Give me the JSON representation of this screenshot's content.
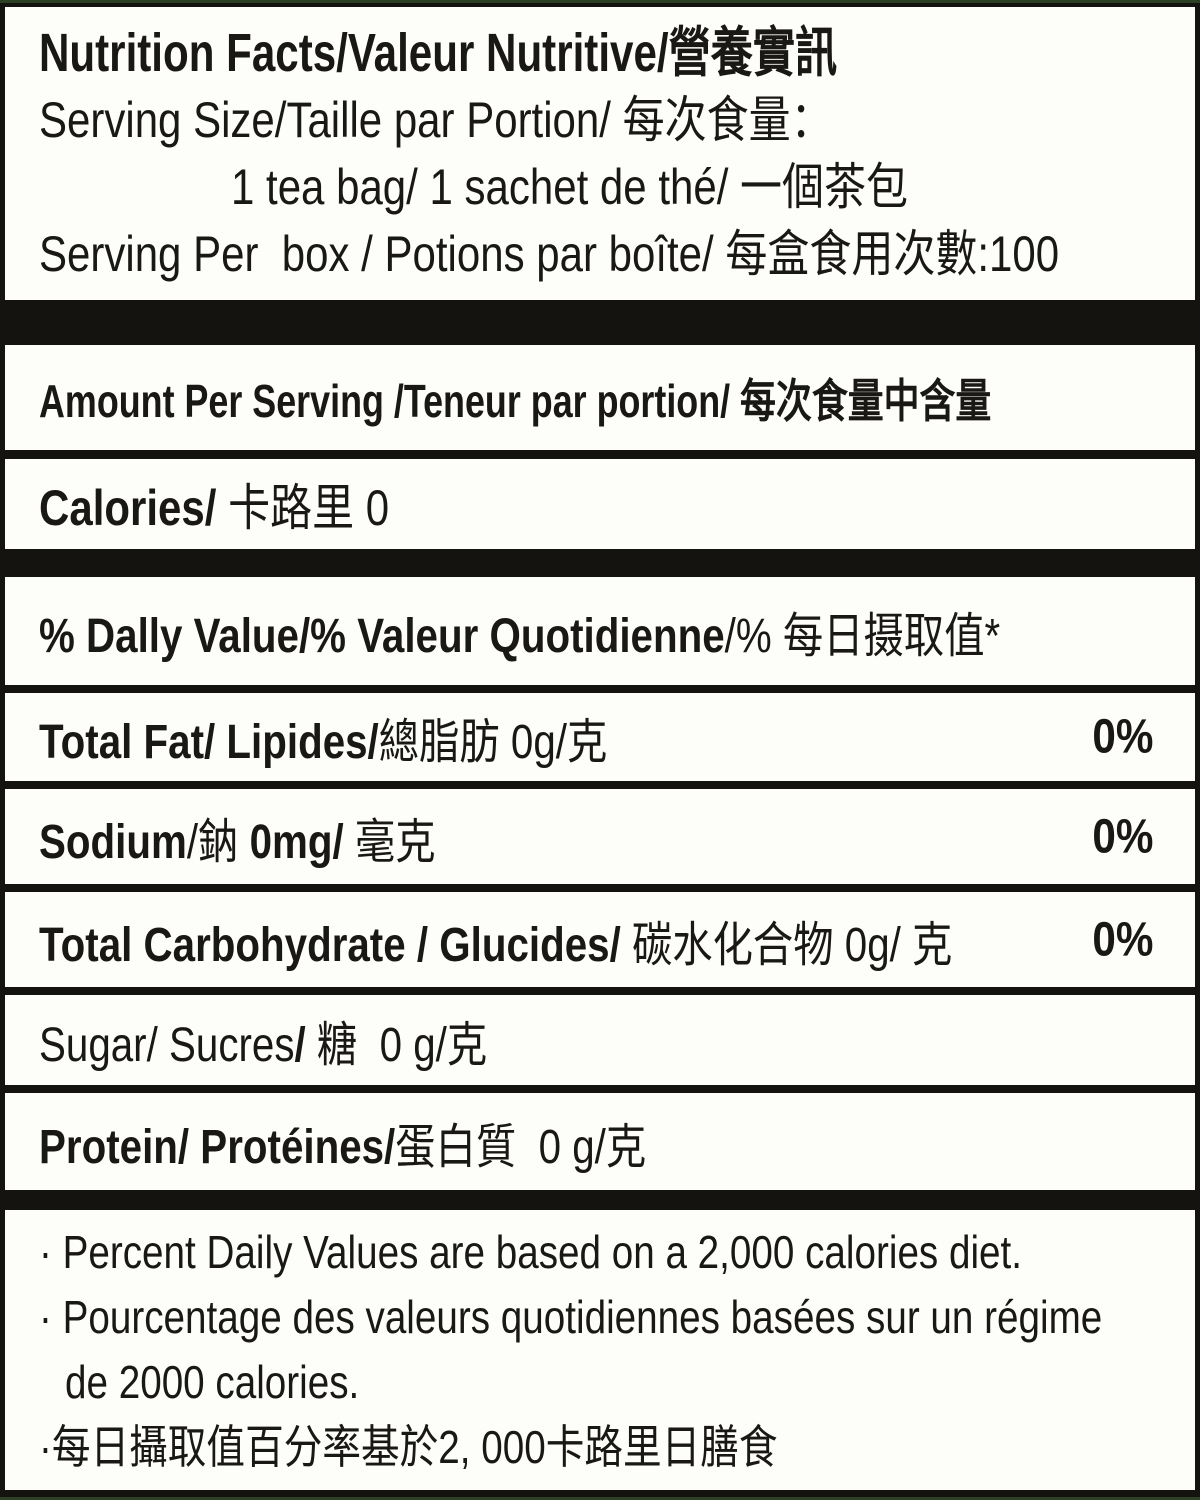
{
  "label": {
    "header": {
      "title": "Nutrition Facts/Valeur Nutritive/營養實訊",
      "serving_size_line": "Serving Size/Taille par Portion/ 每次食量：",
      "serving_size_value": "1 tea bag/ 1 sachet de thé/ 一個茶包",
      "servings_per_box": "Serving Per  box / Potions par boîte/ 每盒食用次數:100"
    },
    "amount_per_serving": "Amount Per Serving /Teneur par portion/ 每次食量中含量",
    "calories": {
      "bold": "Calories/",
      "rest": " 卡路里 0"
    },
    "daily_value_header": {
      "bold": "% Dally Value/% Valeur Quotidienne",
      "rest": "/% 每日摄取值*"
    },
    "rows": [
      {
        "name": "total-fat",
        "segments": [
          "Total Fat/ Lipides/",
          "總脂肪 0g/克"
        ],
        "dv": "0%"
      },
      {
        "name": "sodium",
        "segments": [
          "Sodium",
          "/鈉 ",
          "0mg/",
          " 毫克"
        ],
        "dv": "0%"
      },
      {
        "name": "total-carbohydrate",
        "segments": [
          "Total Carbohydrate / Glucides/",
          " 碳水化合物 0g/ 克"
        ],
        "dv": "0%"
      },
      {
        "name": "sugar",
        "segments": [
          "Sugar/ Sucres",
          "/",
          " 糖  0 g/克"
        ],
        "dv": ""
      },
      {
        "name": "protein",
        "segments": [
          "Protein/ Protéines/",
          "蛋白質  0 g/克"
        ],
        "dv": ""
      }
    ],
    "footnotes": [
      "· Percent Daily Values are based on a 2,000 calories diet.",
      "· Pourcentage des valeurs quotidiennes basées sur un régime",
      "de 2000 calories.",
      "·每日攝取值百分率基於2, 000卡路里日膳食"
    ],
    "colors": {
      "background": "#151310",
      "panel": "#fdfdf9",
      "text": "#1a1814",
      "edge_green": "#2c4023"
    }
  }
}
